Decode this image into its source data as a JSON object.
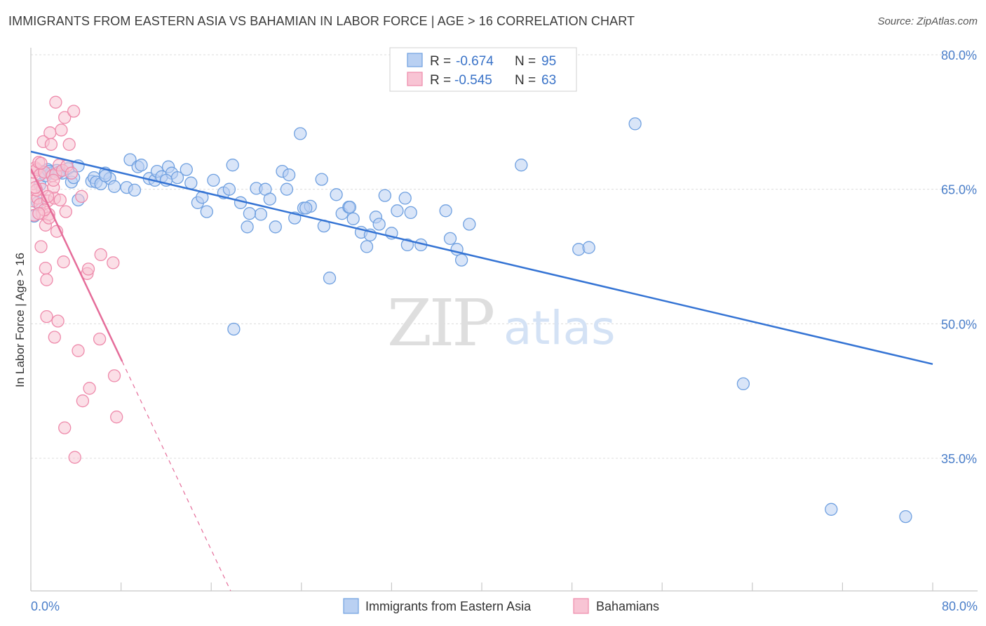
{
  "title": "IMMIGRANTS FROM EASTERN ASIA VS BAHAMIAN IN LABOR FORCE | AGE > 16 CORRELATION CHART",
  "source": "Source: ZipAtlas.com",
  "watermark": {
    "zip": "ZIP",
    "atlas": "atlas"
  },
  "legend": {
    "r_label": "R =",
    "n_label": "N =",
    "rows": [
      {
        "r": "-0.674",
        "n": "95",
        "color": "#6fa0e0"
      },
      {
        "r": "-0.545",
        "n": "63",
        "color": "#ee8aab"
      }
    ]
  },
  "colors": {
    "blue": "#3574d4",
    "pink": "#e56d9a",
    "blue_fill": "#b9d0f2",
    "pink_fill": "#f8c4d4"
  },
  "chart_data": {
    "type": "scatter",
    "xlabel": "",
    "ylabel": "In Labor Force | Age > 16",
    "xlim": [
      0,
      80
    ],
    "ylim": [
      20,
      82
    ],
    "x_tick_labels": [
      "0.0%",
      "80.0%"
    ],
    "y_ticks": [
      35,
      50,
      65,
      80
    ],
    "y_tick_labels": [
      "35.0%",
      "50.0%",
      "65.0%",
      "80.0%"
    ],
    "grid": "horizontal dashed",
    "legend_position": "top-center",
    "series": [
      {
        "name": "Immigrants from Eastern Asia",
        "trend": {
          "x": [
            0,
            80
          ],
          "y": [
            69.2,
            45.5
          ]
        },
        "points": [
          [
            0.3,
            62.0
          ],
          [
            0.8,
            65.5
          ],
          [
            1.0,
            67.0
          ],
          [
            1.3,
            66.5
          ],
          [
            1.5,
            67.2
          ],
          [
            1.8,
            66.8
          ],
          [
            2.3,
            67.1
          ],
          [
            2.8,
            66.8
          ],
          [
            3.3,
            67.3
          ],
          [
            3.6,
            65.8
          ],
          [
            4.2,
            67.6
          ],
          [
            5.4,
            65.9
          ],
          [
            5.6,
            66.3
          ],
          [
            5.8,
            65.8
          ],
          [
            6.2,
            65.6
          ],
          [
            6.6,
            66.8
          ],
          [
            7.0,
            66.2
          ],
          [
            7.4,
            65.3
          ],
          [
            8.8,
            68.3
          ],
          [
            9.5,
            67.5
          ],
          [
            9.8,
            67.7
          ],
          [
            10.5,
            66.2
          ],
          [
            11.0,
            66.0
          ],
          [
            11.2,
            67.0
          ],
          [
            11.6,
            66.4
          ],
          [
            12.2,
            67.5
          ],
          [
            12.5,
            66.8
          ],
          [
            13.0,
            66.3
          ],
          [
            13.8,
            67.2
          ],
          [
            14.2,
            65.7
          ],
          [
            14.8,
            63.5
          ],
          [
            15.6,
            62.5
          ],
          [
            16.2,
            66.0
          ],
          [
            17.1,
            64.6
          ],
          [
            17.6,
            65.0
          ],
          [
            17.9,
            67.7
          ],
          [
            18.6,
            63.5
          ],
          [
            19.2,
            60.8
          ],
          [
            20.0,
            65.1
          ],
          [
            20.4,
            62.2
          ],
          [
            20.8,
            65.0
          ],
          [
            21.7,
            60.8
          ],
          [
            22.3,
            67.0
          ],
          [
            22.7,
            65.0
          ],
          [
            22.9,
            66.6
          ],
          [
            23.4,
            61.8
          ],
          [
            23.9,
            71.2
          ],
          [
            24.2,
            62.9
          ],
          [
            24.8,
            63.1
          ],
          [
            25.8,
            66.1
          ],
          [
            26.0,
            60.9
          ],
          [
            26.5,
            55.1
          ],
          [
            27.1,
            64.4
          ],
          [
            27.6,
            62.3
          ],
          [
            28.2,
            63.0
          ],
          [
            28.6,
            61.7
          ],
          [
            29.3,
            60.2
          ],
          [
            29.8,
            58.6
          ],
          [
            30.1,
            59.9
          ],
          [
            30.6,
            61.9
          ],
          [
            30.9,
            61.1
          ],
          [
            31.4,
            64.3
          ],
          [
            32.0,
            60.1
          ],
          [
            32.5,
            62.6
          ],
          [
            33.2,
            64.0
          ],
          [
            33.4,
            58.8
          ],
          [
            33.7,
            62.4
          ],
          [
            34.6,
            58.8
          ],
          [
            36.8,
            62.6
          ],
          [
            37.2,
            59.5
          ],
          [
            37.8,
            58.3
          ],
          [
            38.2,
            57.1
          ],
          [
            38.9,
            61.1
          ],
          [
            43.5,
            67.7
          ],
          [
            48.6,
            58.3
          ],
          [
            49.5,
            58.5
          ],
          [
            53.6,
            72.3
          ],
          [
            63.2,
            43.3
          ],
          [
            71.0,
            29.3
          ],
          [
            77.6,
            28.5
          ],
          [
            18.0,
            49.4
          ],
          [
            4.2,
            63.8
          ],
          [
            8.5,
            65.2
          ],
          [
            9.2,
            64.9
          ],
          [
            3.8,
            66.3
          ],
          [
            1.6,
            67.0
          ],
          [
            0.6,
            63.5
          ],
          [
            2.5,
            66.9
          ],
          [
            6.6,
            66.5
          ],
          [
            12.0,
            66.0
          ],
          [
            15.2,
            64.1
          ],
          [
            19.4,
            62.3
          ],
          [
            21.2,
            63.9
          ],
          [
            24.4,
            62.9
          ],
          [
            28.3,
            63.0
          ]
        ]
      },
      {
        "name": "Bahamians",
        "trend": {
          "x": [
            0,
            8.1
          ],
          "y": [
            67.3,
            45.8
          ]
        },
        "trend_extension": {
          "x": [
            8.1,
            17.8
          ],
          "y": [
            45.8,
            20.0
          ]
        },
        "points": [
          [
            0.2,
            63.7
          ],
          [
            0.2,
            65.6
          ],
          [
            0.3,
            66.9
          ],
          [
            0.4,
            67.4
          ],
          [
            0.5,
            67.2
          ],
          [
            0.6,
            64.0
          ],
          [
            0.7,
            68.0
          ],
          [
            0.8,
            66.6
          ],
          [
            0.8,
            63.3
          ],
          [
            0.9,
            58.6
          ],
          [
            1.0,
            65.0
          ],
          [
            1.0,
            62.3
          ],
          [
            1.1,
            70.3
          ],
          [
            1.2,
            66.9
          ],
          [
            1.3,
            56.2
          ],
          [
            1.3,
            61.0
          ],
          [
            1.4,
            50.8
          ],
          [
            1.4,
            54.9
          ],
          [
            1.5,
            63.7
          ],
          [
            1.6,
            62.2
          ],
          [
            1.6,
            61.8
          ],
          [
            1.7,
            71.3
          ],
          [
            1.8,
            70.0
          ],
          [
            1.9,
            66.5
          ],
          [
            2.0,
            65.2
          ],
          [
            2.1,
            64.0
          ],
          [
            2.1,
            48.5
          ],
          [
            2.2,
            74.7
          ],
          [
            2.2,
            66.7
          ],
          [
            2.3,
            60.3
          ],
          [
            2.4,
            50.3
          ],
          [
            2.5,
            67.7
          ],
          [
            2.6,
            63.8
          ],
          [
            2.7,
            71.6
          ],
          [
            2.8,
            67.1
          ],
          [
            2.9,
            56.9
          ],
          [
            3.0,
            73.0
          ],
          [
            3.0,
            38.4
          ],
          [
            3.1,
            62.5
          ],
          [
            3.2,
            67.6
          ],
          [
            3.4,
            70.0
          ],
          [
            3.6,
            66.8
          ],
          [
            3.8,
            73.7
          ],
          [
            3.9,
            35.1
          ],
          [
            4.2,
            47.0
          ],
          [
            4.5,
            64.2
          ],
          [
            4.6,
            41.4
          ],
          [
            5.0,
            55.6
          ],
          [
            5.1,
            56.1
          ],
          [
            5.2,
            42.8
          ],
          [
            6.1,
            48.3
          ],
          [
            6.2,
            57.7
          ],
          [
            7.3,
            56.8
          ],
          [
            7.4,
            44.2
          ],
          [
            7.6,
            39.6
          ],
          [
            0.3,
            62.1
          ],
          [
            0.5,
            64.9
          ],
          [
            0.9,
            67.9
          ],
          [
            1.2,
            62.7
          ],
          [
            1.5,
            64.2
          ],
          [
            0.4,
            65.2
          ],
          [
            2.0,
            66.0
          ],
          [
            0.7,
            62.3
          ]
        ]
      }
    ]
  }
}
